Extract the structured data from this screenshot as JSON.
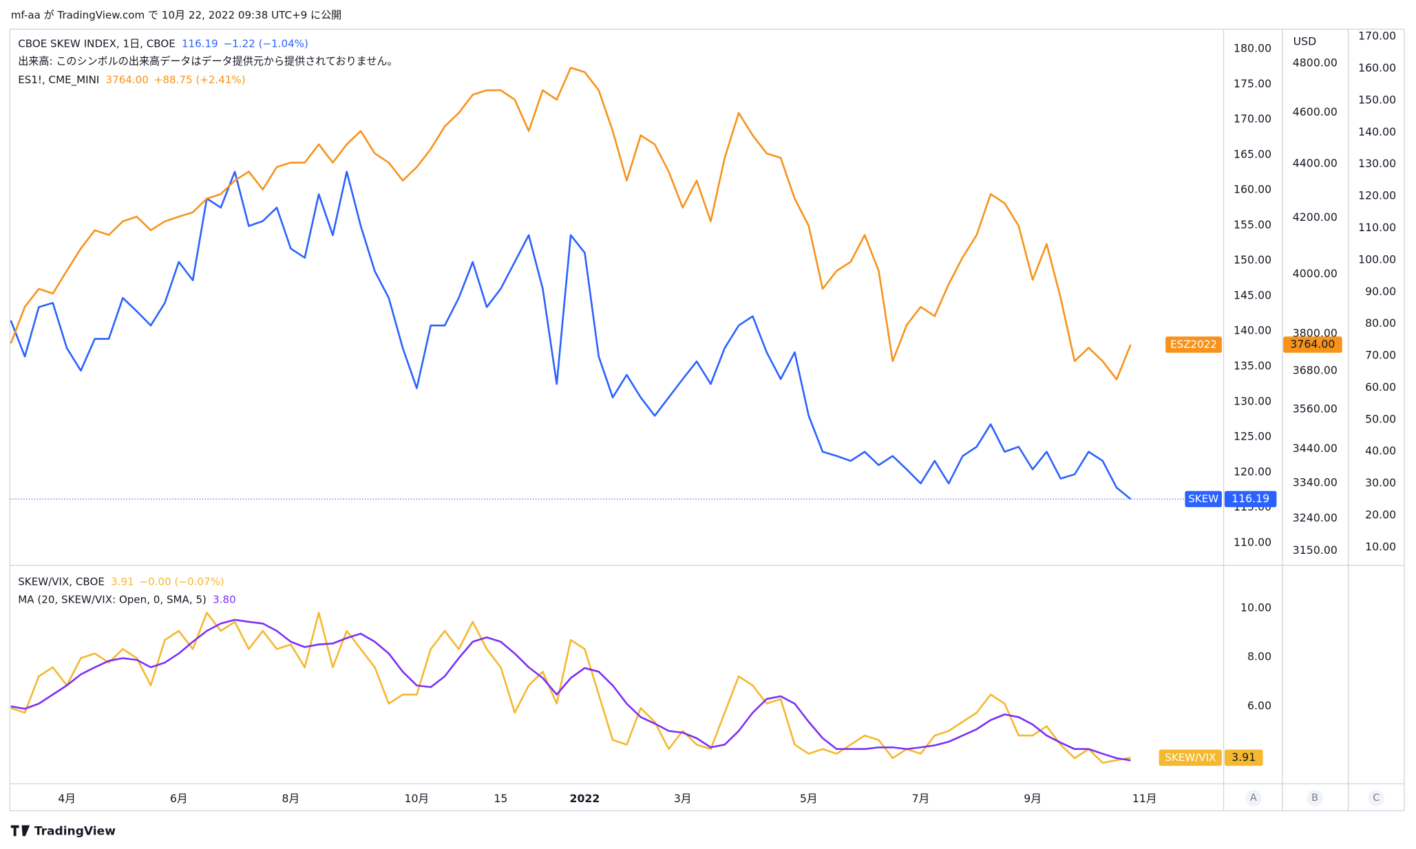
{
  "header": "mf-aa が TradingView.com で 10月 22, 2022 09:38 UTC+9 に公開",
  "footer": "TradingView",
  "scale_buttons": [
    "A",
    "B",
    "C"
  ],
  "chart_data": [
    {
      "type": "line",
      "note": "出来高: このシンボルの出来高データはデータ提供元から提供されておりません。",
      "categories": [
        null,
        null,
        null,
        null,
        "4月",
        null,
        null,
        null,
        null,
        null,
        null,
        null,
        "6月",
        null,
        null,
        null,
        null,
        null,
        null,
        null,
        "8月",
        null,
        null,
        null,
        null,
        null,
        null,
        null,
        null,
        "10月",
        null,
        null,
        null,
        null,
        null,
        "15",
        null,
        null,
        null,
        null,
        null,
        "2022",
        null,
        null,
        null,
        null,
        null,
        null,
        "3月",
        null,
        null,
        null,
        null,
        null,
        null,
        null,
        null,
        "5月",
        null,
        null,
        null,
        null,
        null,
        null,
        null,
        "7月",
        null,
        null,
        null,
        null,
        null,
        null,
        null,
        "9月",
        null,
        null,
        null,
        null,
        null,
        null,
        null,
        "11月"
      ],
      "ylim": [
        106.8,
        182.8
      ],
      "yticks": [
        {
          "value": 110,
          "label": "110.00"
        },
        {
          "value": 115,
          "label": "115.00"
        },
        {
          "value": 120,
          "label": "120.00"
        },
        {
          "value": 125,
          "label": "125.00"
        },
        {
          "value": 130,
          "label": "130.00"
        },
        {
          "value": 135,
          "label": "135.00"
        },
        {
          "value": 140,
          "label": "140.00"
        },
        {
          "value": 145,
          "label": "145.00"
        },
        {
          "value": 150,
          "label": "150.00"
        },
        {
          "value": 155,
          "label": "155.00"
        },
        {
          "value": 160,
          "label": "160.00"
        },
        {
          "value": 165,
          "label": "165.00"
        },
        {
          "value": 170,
          "label": "170.00"
        },
        {
          "value": 175,
          "label": "175.00"
        },
        {
          "value": 180,
          "label": "180.00"
        }
      ],
      "y2_title": "USD",
      "y2log": true,
      "y2lim": [
        3111,
        4943
      ],
      "y2ticks": [
        {
          "value": 3150,
          "label": "3150.00"
        },
        {
          "value": 3240,
          "label": "3240.00"
        },
        {
          "value": 3340,
          "label": "3340.00"
        },
        {
          "value": 3440,
          "label": "3440.00"
        },
        {
          "value": 3560,
          "label": "3560.00"
        },
        {
          "value": 3680,
          "label": "3680.00"
        },
        {
          "value": 3800,
          "label": "3800.00"
        },
        {
          "value": 4000,
          "label": "4000.00"
        },
        {
          "value": 4200,
          "label": "4200.00"
        },
        {
          "value": 4400,
          "label": "4400.00"
        },
        {
          "value": 4600,
          "label": "4600.00"
        },
        {
          "value": 4800,
          "label": "4800.00"
        }
      ],
      "y3lim": [
        4.35,
        172.3
      ],
      "y3ticks": [
        {
          "value": 10,
          "label": "10.00"
        },
        {
          "value": 20,
          "label": "20.00"
        },
        {
          "value": 30,
          "label": "30.00"
        },
        {
          "value": 40,
          "label": "40.00"
        },
        {
          "value": 50,
          "label": "50.00"
        },
        {
          "value": 60,
          "label": "60.00"
        },
        {
          "value": 70,
          "label": "70.00"
        },
        {
          "value": 80,
          "label": "80.00"
        },
        {
          "value": 90,
          "label": "90.00"
        },
        {
          "value": 100,
          "label": "100.00"
        },
        {
          "value": 110,
          "label": "110.00"
        },
        {
          "value": 120,
          "label": "120.00"
        },
        {
          "value": 130,
          "label": "130.00"
        },
        {
          "value": 140,
          "label": "140.00"
        },
        {
          "value": 150,
          "label": "150.00"
        },
        {
          "value": 160,
          "label": "160.00"
        },
        {
          "value": 170,
          "label": "170.00"
        }
      ],
      "grid": false,
      "series": [
        {
          "name": "CBOE SKEW INDEX, 1日, CBOE",
          "color": "#2962ff",
          "axis": "y",
          "tag": "SKEW",
          "last_label": "116.19",
          "change": "−1.22 (−1.04%)",
          "price_line": true,
          "values": [
            141.5,
            136.4,
            143.4,
            144,
            137.6,
            134.4,
            138.9,
            138.9,
            144.7,
            142.8,
            140.8,
            144,
            149.8,
            147.2,
            158.8,
            157.5,
            162.6,
            154.9,
            155.6,
            157.5,
            151.7,
            150.4,
            159.4,
            153.6,
            162.6,
            154.9,
            148.5,
            144.7,
            137.6,
            131.9,
            140.8,
            140.8,
            144.7,
            149.8,
            143.4,
            146,
            149.8,
            153.6,
            146,
            132.5,
            153.6,
            151.1,
            136.4,
            130.6,
            133.8,
            130.6,
            128,
            130.6,
            133.2,
            135.7,
            132.5,
            137.6,
            140.8,
            142.1,
            137,
            133.2,
            137,
            128,
            122.9,
            122.3,
            121.6,
            122.9,
            121,
            122.3,
            120.4,
            118.4,
            121.6,
            118.4,
            122.3,
            123.6,
            126.8,
            122.9,
            123.6,
            120.4,
            122.9,
            119.1,
            119.7,
            122.9,
            121.6,
            117.8,
            116.19,
            null
          ]
        },
        {
          "name": "ES1!, CME_MINI",
          "color": "#f7931a",
          "axis": "y2",
          "tag": "ESZ2022",
          "last_label": "3764.00",
          "change": "+88.75 (+2.41%)",
          "values": [
            3768,
            3889,
            3950,
            3934,
            4012,
            4090,
            4155,
            4138,
            4187,
            4204,
            4155,
            4187,
            4204,
            4220,
            4270,
            4287,
            4337,
            4371,
            4304,
            4388,
            4405,
            4405,
            4475,
            4405,
            4475,
            4527,
            4440,
            4405,
            4337,
            4388,
            4457,
            4545,
            4598,
            4671,
            4689,
            4689,
            4651,
            4527,
            4689,
            4651,
            4781,
            4763,
            4689,
            4527,
            4337,
            4510,
            4475,
            4371,
            4237,
            4337,
            4187,
            4423,
            4598,
            4510,
            4440,
            4423,
            4270,
            4171,
            3950,
            4012,
            4043,
            4138,
            4012,
            3711,
            3828,
            3889,
            3858,
            3966,
            4059,
            4138,
            4287,
            4253,
            4171,
            3981,
            4106,
            3919,
            3711,
            3754,
            3711,
            3653,
            3764,
            null
          ]
        }
      ]
    },
    {
      "type": "line",
      "ylim": [
        2.85,
        11.74
      ],
      "yticks": [
        {
          "value": 6,
          "label": "6.00"
        },
        {
          "value": 8,
          "label": "8.00"
        },
        {
          "value": 10,
          "label": "10.00"
        }
      ],
      "grid": false,
      "series": [
        {
          "name": "SKEW/VIX, CBOE",
          "color": "#f5b82e",
          "axis": "y",
          "tag": "SKEW/VIX",
          "last_label": "3.91",
          "change": "−0.00 (−0.07%)",
          "values": [
            5.93,
            5.74,
            7.22,
            7.59,
            6.85,
            7.96,
            8.15,
            7.78,
            8.33,
            7.96,
            6.85,
            8.7,
            9.07,
            8.33,
            9.81,
            9.07,
            9.44,
            8.33,
            9.07,
            8.33,
            8.52,
            7.59,
            9.81,
            7.59,
            9.07,
            8.33,
            7.59,
            6.11,
            6.48,
            6.48,
            8.33,
            9.07,
            8.33,
            9.44,
            8.33,
            7.59,
            5.74,
            6.85,
            7.41,
            6.11,
            8.7,
            8.33,
            6.48,
            4.63,
            4.44,
            5.93,
            5.37,
            4.26,
            5,
            4.44,
            4.26,
            5.74,
            7.22,
            6.85,
            6.11,
            6.3,
            4.44,
            4.07,
            4.26,
            4.07,
            4.44,
            4.81,
            4.63,
            3.89,
            4.26,
            4.07,
            4.81,
            5,
            5.37,
            5.74,
            6.48,
            6.11,
            4.81,
            4.81,
            5.19,
            4.44,
            3.89,
            4.26,
            3.7,
            3.81,
            3.91,
            null
          ]
        },
        {
          "name": "MA (20, SKEW/VIX: Open, 0, SMA, 5)",
          "color": "#7b2ff7",
          "axis": "y",
          "last_label": "3.80",
          "values": [
            6,
            5.9,
            6.11,
            6.48,
            6.85,
            7.3,
            7.59,
            7.85,
            7.96,
            7.89,
            7.59,
            7.78,
            8.15,
            8.63,
            9.07,
            9.37,
            9.52,
            9.44,
            9.37,
            9.07,
            8.63,
            8.41,
            8.52,
            8.56,
            8.78,
            8.96,
            8.63,
            8.15,
            7.41,
            6.85,
            6.78,
            7.22,
            7.96,
            8.63,
            8.81,
            8.63,
            8.15,
            7.59,
            7.15,
            6.48,
            7.15,
            7.56,
            7.41,
            6.85,
            6.11,
            5.56,
            5.3,
            5,
            4.93,
            4.7,
            4.33,
            4.44,
            5,
            5.74,
            6.3,
            6.41,
            6.11,
            5.37,
            4.7,
            4.26,
            4.26,
            4.26,
            4.33,
            4.33,
            4.26,
            4.33,
            4.41,
            4.56,
            4.81,
            5.07,
            5.44,
            5.67,
            5.56,
            5.26,
            4.81,
            4.52,
            4.26,
            4.26,
            4.07,
            3.89,
            3.8,
            null
          ]
        }
      ]
    }
  ]
}
